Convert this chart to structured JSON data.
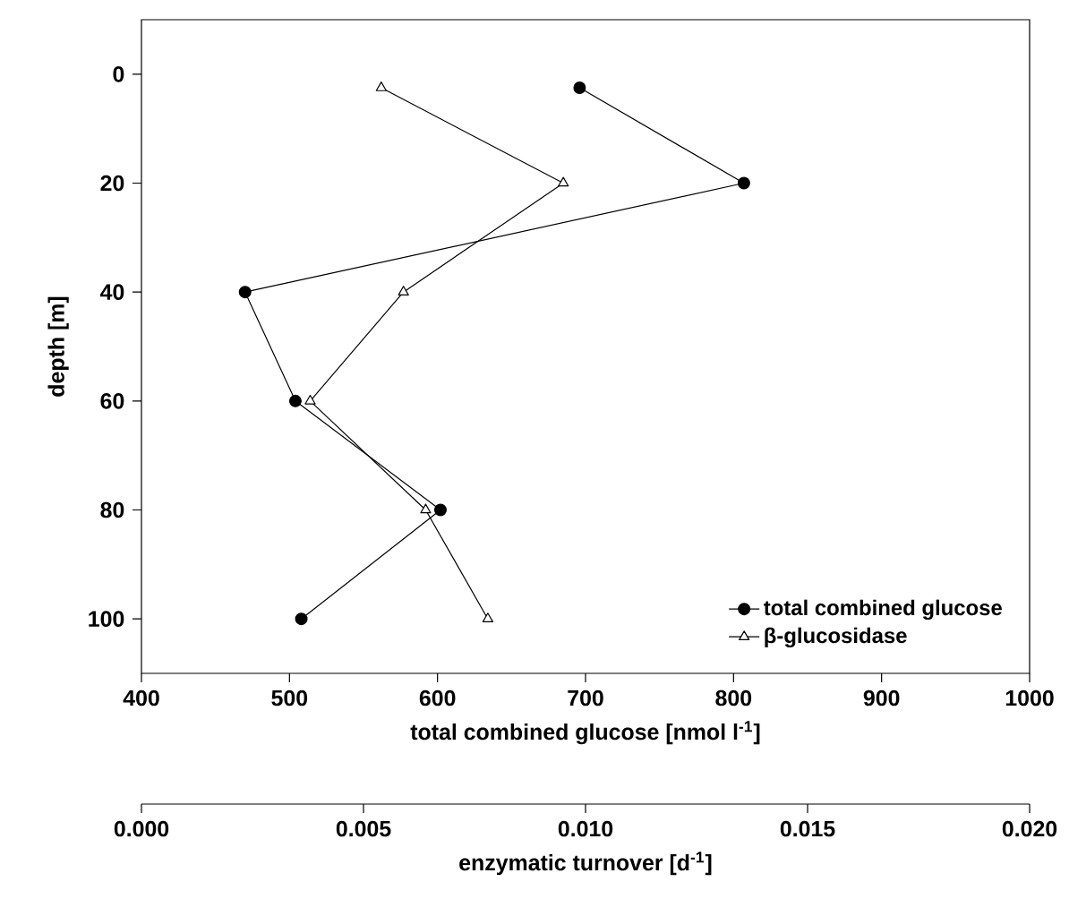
{
  "chart_data": {
    "type": "line",
    "xlabel": "total combined glucose [nmol l$^{-1}$]",
    "x2label": "enzymatic turnover [d$^{-1}$]",
    "ylabel": "depth [m]",
    "xlim": [
      400,
      1000
    ],
    "xticks": [
      400,
      500,
      600,
      700,
      800,
      900,
      1000
    ],
    "x2lim": [
      0.0,
      0.02
    ],
    "x2ticks": [
      {
        "value": 0,
        "label": "0.000"
      },
      {
        "value": 0.005,
        "label": "0.005"
      },
      {
        "value": 0.01,
        "label": "0.010"
      },
      {
        "value": 0.015,
        "label": "0.015"
      },
      {
        "value": 0.02,
        "label": "0.020"
      }
    ],
    "ylim": [
      110,
      -10
    ],
    "yticks": [
      0,
      20,
      40,
      60,
      80,
      100
    ],
    "legend": "bottom right",
    "grid": false,
    "series": [
      {
        "name": "total combined glucose",
        "color": "#000000",
        "marker": "circle",
        "x": [
          696,
          807,
          470,
          504,
          602,
          508
        ],
        "values": [
          2.5,
          20,
          40,
          60,
          80,
          100
        ]
      },
      {
        "name": "β-glucosidase",
        "color": "#000000",
        "marker": "triangle",
        "axis": "x2",
        "x": [
          0.0054,
          0.0095,
          0.0059,
          0.0038,
          0.0064,
          0.0078
        ],
        "values": [
          2.5,
          20,
          40,
          60,
          80,
          100
        ]
      }
    ]
  }
}
